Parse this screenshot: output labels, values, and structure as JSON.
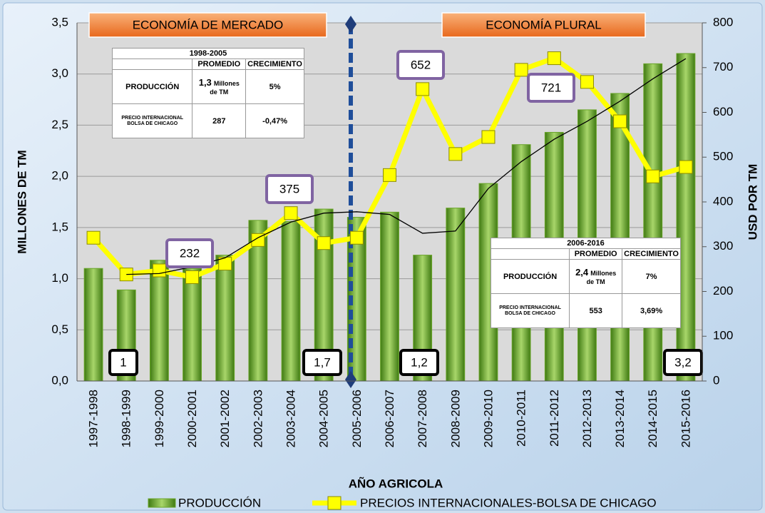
{
  "chart_data": {
    "type": "bar",
    "categories": [
      "1997-1998",
      "1998-1999",
      "1999-2000",
      "2000-2001",
      "2001-2002",
      "2002-2003",
      "2003-2004",
      "2004-2005",
      "2005-2006",
      "2006-2007",
      "2007-2008",
      "2008-2009",
      "2009-2010",
      "2010-2011",
      "2011-2012",
      "2012-2013",
      "2013-2014",
      "2014-2015",
      "2015-2016"
    ],
    "series": [
      {
        "name": "PRODUCCIÓN",
        "type": "bar",
        "color": "#6aa52a",
        "values": [
          1.1,
          0.89,
          1.18,
          1.1,
          1.23,
          1.57,
          1.56,
          1.68,
          1.6,
          1.65,
          1.23,
          1.69,
          1.93,
          2.31,
          2.43,
          2.65,
          2.81,
          3.1,
          3.2
        ]
      },
      {
        "name": "PRECIOS INTERNACIONALES-BOLSA DE CHICAGO",
        "type": "line",
        "axis": "y2",
        "color": "#ffff00",
        "values": [
          320,
          238,
          247,
          232,
          262,
          315,
          375,
          308,
          320,
          460,
          652,
          507,
          545,
          695,
          721,
          668,
          580,
          457,
          478
        ]
      },
      {
        "type": "line",
        "axis": "y2",
        "color": "#000000",
        "values": [
          null,
          238,
          240,
          255,
          275,
          320,
          355,
          375,
          378,
          372,
          330,
          335,
          430,
          490,
          540,
          580,
          625,
          675,
          720
        ]
      }
    ],
    "ylabel": "MILLONES DE TM",
    "y2label": "USD POR TM",
    "xlabel": "AÑO AGRICOLA",
    "ylim": [
      0,
      3.5
    ],
    "yticks": [
      {
        "value": 0,
        "label": "0,0"
      },
      {
        "value": 0.5,
        "label": "0,5"
      },
      {
        "value": 1,
        "label": "1,0"
      },
      {
        "value": 1.5,
        "label": "1,5"
      },
      {
        "value": 2,
        "label": "2,0"
      },
      {
        "value": 2.5,
        "label": "2,5"
      },
      {
        "value": 3,
        "label": "3,0"
      },
      {
        "value": 3.5,
        "label": "3,5"
      }
    ],
    "y2lim": [
      0,
      800
    ],
    "y2ticks": [
      0,
      100,
      200,
      300,
      400,
      500,
      600,
      700,
      800
    ],
    "grid": true,
    "legend": "bottom",
    "annotations": [
      "ECONOMÍA DE MERCADO",
      "ECONOMÍA PLURAL",
      "652",
      "721",
      "375",
      "232",
      "1",
      "1,7",
      "1,2",
      "3,2"
    ],
    "tables": [
      {
        "title": "1998-2005",
        "header": [
          "PROMEDIO",
          "CRECIMIENTO"
        ],
        "rows": [
          [
            "PRODUCCIÓN",
            [
              "1,3",
              "Millones de TM"
            ],
            "5%"
          ],
          [
            "PRECIO INTERNACIONAL BOLSA DE CHICAGO",
            "287",
            "-0,47%"
          ]
        ]
      },
      {
        "title": "2006-2016",
        "header": [
          "PROMEDIO",
          "CRECIMIENTO"
        ],
        "rows": [
          [
            "PRODUCCIÓN",
            [
              "2,4",
              "Millones de TM"
            ],
            "7%"
          ],
          [
            "PRECIO INTERNACIONAL BOLSA DE CHICAGO",
            "553",
            "3,69%"
          ]
        ]
      }
    ]
  }
}
